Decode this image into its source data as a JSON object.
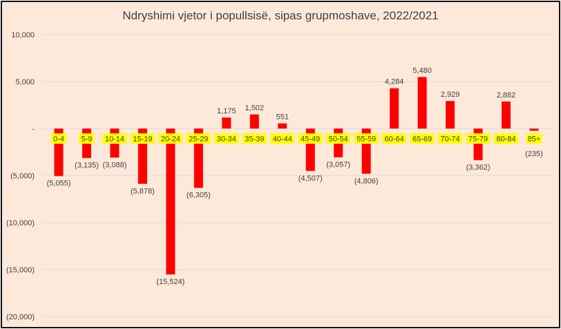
{
  "chart_data": {
    "type": "bar",
    "title": "Ndryshimi vjetor i popullsisë, sipas grupmoshave, 2022/2021",
    "categories": [
      "0-4",
      "5-9",
      "10-14",
      "15-19",
      "20-24",
      "25-29",
      "30-34",
      "35-39",
      "40-44",
      "45-49",
      "50-54",
      "55-59",
      "60-64",
      "65-69",
      "70-74",
      "75-79",
      "80-84",
      "85+"
    ],
    "values": [
      -5055,
      -3135,
      -3088,
      -5878,
      -15524,
      -6305,
      1175,
      1502,
      551,
      -4507,
      -3057,
      -4806,
      4284,
      5480,
      2929,
      -3362,
      2882,
      -235
    ],
    "data_labels": [
      "(5,055)",
      "(3,135)",
      "(3,088)",
      "(5,878)",
      "(15,524)",
      "(6,305)",
      "1,175",
      "1,502",
      "551",
      "(4,507)",
      "(3,057)",
      "(4,806)",
      "4,284",
      "5,480",
      "2,929",
      "(3,362)",
      "2,882",
      "(235)"
    ],
    "yticks": [
      10000,
      5000,
      0,
      -5000,
      -10000,
      -15000,
      -20000
    ],
    "ytick_labels": [
      "10,000",
      "5,000",
      "-",
      "(5,000)",
      "(10,000)",
      "(15,000)",
      "(20,000)"
    ],
    "ylim": [
      -20000,
      10000
    ],
    "grid": true,
    "legend": "none",
    "colors": {
      "bar": "#ff0000",
      "category_label_highlight": "#ffff00",
      "background": "#fde9da",
      "grid": "#d9d9d9"
    }
  }
}
